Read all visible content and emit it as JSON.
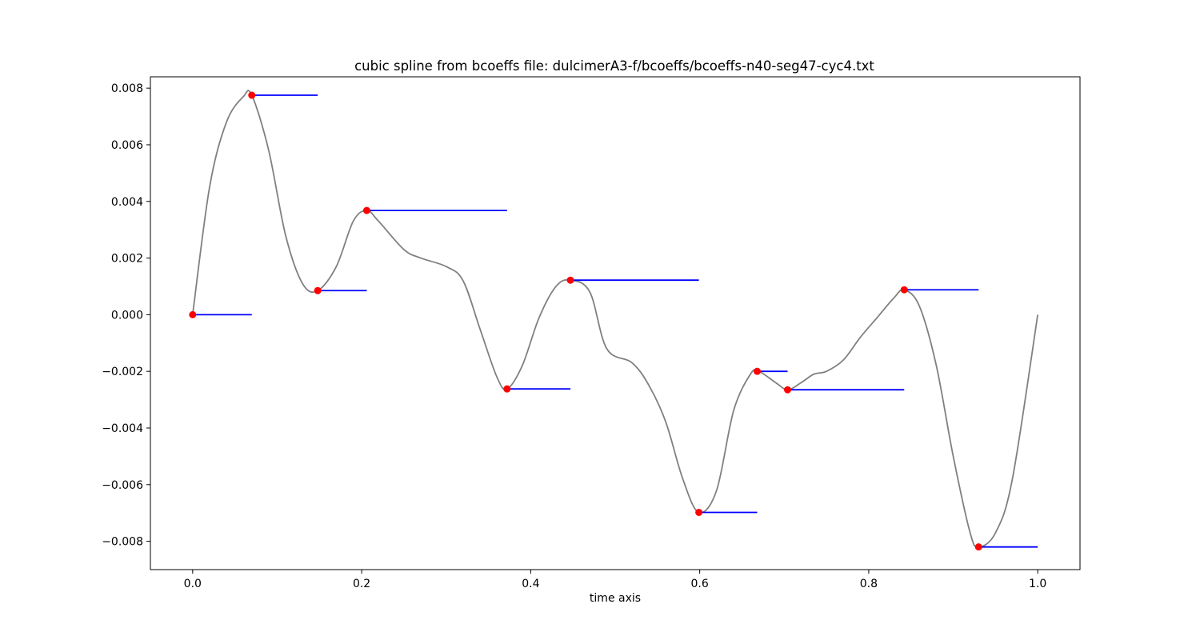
{
  "chart_data": {
    "type": "line",
    "title": "cubic spline from bcoeffs file: dulcimerA3-f/bcoeffs/bcoeffs-n40-seg47-cyc4.txt",
    "xlabel": "time axis",
    "ylabel": "",
    "xlim": [
      -0.05,
      1.05
    ],
    "ylim": [
      -0.009,
      0.0084
    ],
    "xticks": [
      0.0,
      0.2,
      0.4,
      0.6,
      0.8,
      1.0
    ],
    "xtick_labels": [
      "0.0",
      "0.2",
      "0.4",
      "0.6",
      "0.8",
      "1.0"
    ],
    "yticks": [
      0.008,
      0.006,
      0.004,
      0.002,
      0.0,
      -0.002,
      -0.004,
      -0.006,
      -0.008
    ],
    "ytick_labels": [
      "0.008",
      "0.006",
      "0.004",
      "0.002",
      "0.000",
      "−0.002",
      "−0.004",
      "−0.006",
      "−0.008"
    ],
    "grid": false,
    "colors": {
      "curve": "#808080",
      "points": "#ff0000",
      "segments": "#0000ff"
    },
    "curve": {
      "x": [
        0.0,
        0.02,
        0.04,
        0.06,
        0.07,
        0.09,
        0.11,
        0.13,
        0.148,
        0.17,
        0.19,
        0.206,
        0.22,
        0.25,
        0.27,
        0.3,
        0.32,
        0.34,
        0.36,
        0.372,
        0.39,
        0.41,
        0.43,
        0.447,
        0.47,
        0.49,
        0.52,
        0.54,
        0.56,
        0.58,
        0.599,
        0.62,
        0.64,
        0.66,
        0.67,
        0.69,
        0.704,
        0.72,
        0.735,
        0.75,
        0.77,
        0.79,
        0.81,
        0.83,
        0.842,
        0.86,
        0.88,
        0.9,
        0.92,
        0.93,
        0.95,
        0.97,
        1.0
      ],
      "y": [
        0.0,
        0.0045,
        0.0068,
        0.0077,
        0.00775,
        0.0058,
        0.0028,
        0.0011,
        0.00085,
        0.0017,
        0.0033,
        0.00368,
        0.0033,
        0.0023,
        0.002,
        0.0017,
        0.0012,
        -0.0005,
        -0.0022,
        -0.00262,
        -0.0018,
        -0.0001,
        0.001,
        0.00122,
        0.0008,
        -0.0012,
        -0.0017,
        -0.0025,
        -0.0038,
        -0.0058,
        -0.00698,
        -0.0062,
        -0.0034,
        -0.0021,
        -0.002,
        -0.0024,
        -0.00265,
        -0.0024,
        -0.0021,
        -0.002,
        -0.0016,
        -0.0008,
        -0.0001,
        0.0006,
        0.00088,
        0.0003,
        -0.0018,
        -0.005,
        -0.0077,
        -0.0082,
        -0.0077,
        -0.0058,
        0.0
      ]
    },
    "points": {
      "x": [
        0.0,
        0.07,
        0.148,
        0.206,
        0.372,
        0.447,
        0.599,
        0.668,
        0.704,
        0.842,
        0.93
      ],
      "y": [
        0.0,
        0.00775,
        0.00085,
        0.00368,
        -0.00262,
        0.00122,
        -0.00698,
        -0.002,
        -0.00265,
        0.00088,
        -0.0082
      ]
    },
    "segments": [
      {
        "x0": 0.0,
        "x1": 0.07,
        "y": 0.0
      },
      {
        "x0": 0.07,
        "x1": 0.148,
        "y": 0.00775
      },
      {
        "x0": 0.148,
        "x1": 0.206,
        "y": 0.00085
      },
      {
        "x0": 0.206,
        "x1": 0.372,
        "y": 0.00368
      },
      {
        "x0": 0.372,
        "x1": 0.447,
        "y": -0.00262
      },
      {
        "x0": 0.447,
        "x1": 0.599,
        "y": 0.00122
      },
      {
        "x0": 0.599,
        "x1": 0.668,
        "y": -0.00698
      },
      {
        "x0": 0.668,
        "x1": 0.704,
        "y": -0.002
      },
      {
        "x0": 0.704,
        "x1": 0.842,
        "y": -0.00265
      },
      {
        "x0": 0.842,
        "x1": 0.93,
        "y": 0.00088
      },
      {
        "x0": 0.93,
        "x1": 1.0,
        "y": -0.0082
      }
    ]
  }
}
